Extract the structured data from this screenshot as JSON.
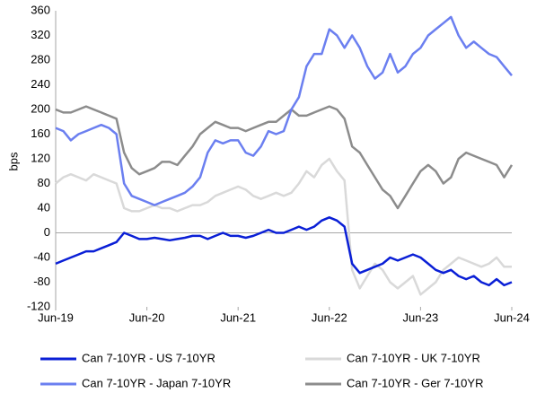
{
  "chart_data": {
    "type": "line",
    "y_label": "bps",
    "x": [
      "2019-06",
      "2019-07",
      "2019-08",
      "2019-09",
      "2019-10",
      "2019-11",
      "2019-12",
      "2020-01",
      "2020-02",
      "2020-03",
      "2020-04",
      "2020-05",
      "2020-06",
      "2020-07",
      "2020-08",
      "2020-09",
      "2020-10",
      "2020-11",
      "2020-12",
      "2021-01",
      "2021-02",
      "2021-03",
      "2021-04",
      "2021-05",
      "2021-06",
      "2021-07",
      "2021-08",
      "2021-09",
      "2021-10",
      "2021-11",
      "2021-12",
      "2022-01",
      "2022-02",
      "2022-03",
      "2022-04",
      "2022-05",
      "2022-06",
      "2022-07",
      "2022-08",
      "2022-09",
      "2022-10",
      "2022-11",
      "2022-12",
      "2023-01",
      "2023-02",
      "2023-03",
      "2023-04",
      "2023-05",
      "2023-06",
      "2023-07",
      "2023-08",
      "2023-09",
      "2023-10",
      "2023-11",
      "2023-12",
      "2024-01",
      "2024-02",
      "2024-03",
      "2024-04",
      "2024-05",
      "2024-06"
    ],
    "series": [
      {
        "name": "Can 7-10YR - UK 7-10YR",
        "color": "#d9d9d9",
        "values": [
          80,
          90,
          95,
          90,
          85,
          95,
          90,
          85,
          80,
          40,
          35,
          35,
          40,
          45,
          40,
          40,
          35,
          40,
          45,
          45,
          50,
          60,
          65,
          70,
          75,
          70,
          60,
          55,
          60,
          65,
          60,
          65,
          80,
          100,
          90,
          110,
          120,
          100,
          85,
          -60,
          -90,
          -70,
          -50,
          -60,
          -80,
          -90,
          -80,
          -70,
          -100,
          -90,
          -80,
          -60,
          -50,
          -40,
          -45,
          -50,
          -55,
          -50,
          -40,
          -55,
          -55
        ]
      },
      {
        "name": "Can 7-10YR - Ger 7-10YR",
        "color": "#8c8c8c",
        "values": [
          200,
          195,
          195,
          200,
          205,
          200,
          195,
          190,
          185,
          130,
          105,
          95,
          100,
          105,
          115,
          115,
          110,
          125,
          140,
          160,
          170,
          180,
          175,
          170,
          170,
          165,
          170,
          175,
          180,
          180,
          190,
          200,
          190,
          190,
          195,
          200,
          205,
          200,
          185,
          140,
          130,
          110,
          90,
          70,
          60,
          40,
          60,
          80,
          100,
          110,
          100,
          80,
          90,
          120,
          130,
          125,
          120,
          115,
          110,
          90,
          110
        ]
      },
      {
        "name": "Can 7-10YR - Japan 7-10YR",
        "color": "#6b7ff0",
        "values": [
          170,
          165,
          150,
          160,
          165,
          170,
          175,
          170,
          160,
          80,
          60,
          55,
          50,
          45,
          50,
          55,
          60,
          65,
          75,
          90,
          130,
          150,
          145,
          150,
          150,
          130,
          125,
          140,
          165,
          160,
          165,
          200,
          220,
          270,
          290,
          290,
          330,
          320,
          300,
          320,
          300,
          270,
          250,
          260,
          290,
          260,
          270,
          290,
          300,
          320,
          330,
          340,
          350,
          320,
          300,
          310,
          300,
          290,
          285,
          270,
          255
        ]
      },
      {
        "name": "Can 7-10YR - US 7-10YR",
        "color": "#0a1fd6",
        "values": [
          -50,
          -45,
          -40,
          -35,
          -30,
          -30,
          -25,
          -20,
          -15,
          0,
          -5,
          -10,
          -10,
          -8,
          -10,
          -12,
          -10,
          -8,
          -5,
          -5,
          -10,
          -5,
          0,
          -5,
          -5,
          -8,
          -5,
          0,
          5,
          0,
          0,
          5,
          10,
          5,
          10,
          20,
          25,
          20,
          10,
          -50,
          -65,
          -60,
          -55,
          -50,
          -40,
          -45,
          -40,
          -35,
          -40,
          -50,
          -60,
          -65,
          -60,
          -70,
          -75,
          -70,
          -80,
          -85,
          -75,
          -85,
          -80
        ]
      }
    ],
    "legend_order": [
      3,
      0,
      2,
      1
    ],
    "ylim": [
      -120,
      360
    ],
    "yticks": [
      -120,
      -80,
      -40,
      0,
      40,
      80,
      120,
      160,
      200,
      240,
      280,
      320,
      360
    ],
    "xlim": [
      "2019-06",
      "2024-06"
    ],
    "xticks": [
      {
        "value": "2019-06",
        "label": "Jun-19"
      },
      {
        "value": "2020-06",
        "label": "Jun-20"
      },
      {
        "value": "2021-06",
        "label": "Jun-21"
      },
      {
        "value": "2022-06",
        "label": "Jun-22"
      },
      {
        "value": "2023-06",
        "label": "Jun-23"
      },
      {
        "value": "2024-06",
        "label": "Jun-24"
      }
    ]
  }
}
